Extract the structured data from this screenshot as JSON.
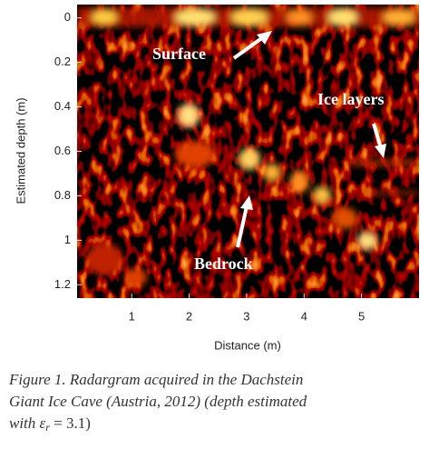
{
  "chart_data": {
    "type": "radargram",
    "xlabel": "Distance (m)",
    "ylabel": "Estimated depth (m)",
    "xlim": [
      0.05,
      6
    ],
    "ylim": [
      -0.06,
      1.26
    ],
    "y_reversed": true,
    "xticks": [
      1,
      2,
      3,
      4,
      5
    ],
    "yticks": [
      0,
      0.2,
      0.4,
      0.6,
      0.8,
      1,
      1.2
    ],
    "grid": false,
    "annotations": [
      {
        "text": "Surface"
      },
      {
        "text": "Ice layers"
      },
      {
        "text": "Bedrock"
      }
    ]
  },
  "caption": {
    "line1": "Figure 1. Radargram acquired in the Dachstein",
    "line2": "Giant Ice Cave (Austria, 2012) (depth estimated",
    "line3": "with ε",
    "subscript": "r",
    "rest": " = 3.1)"
  }
}
